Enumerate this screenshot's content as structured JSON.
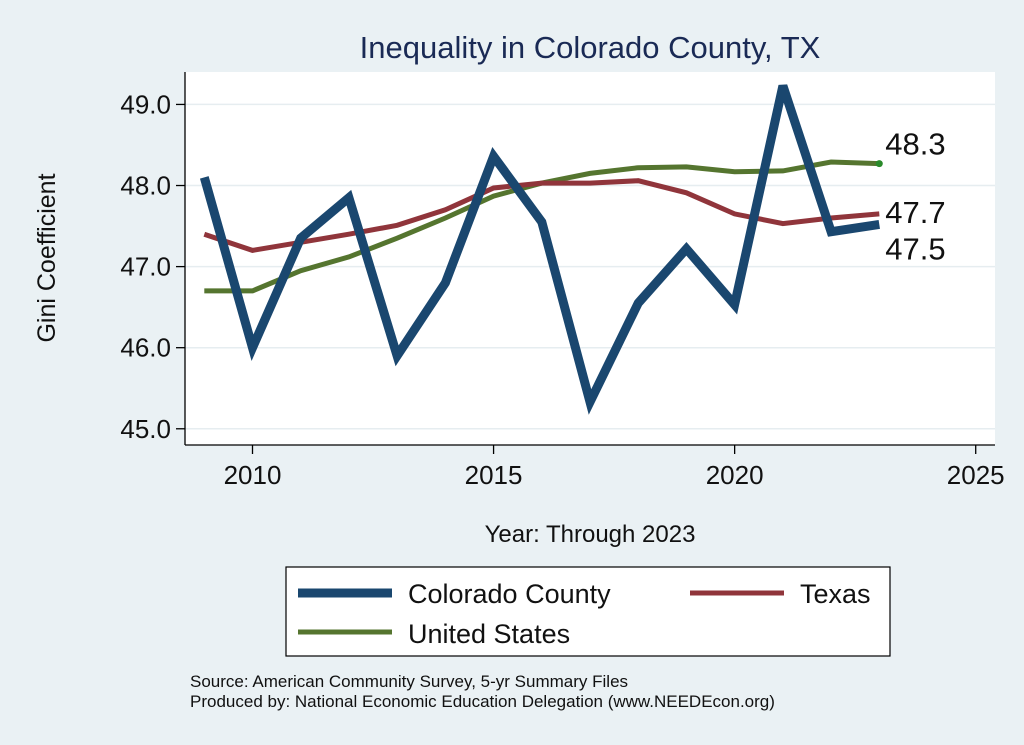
{
  "chart_data": {
    "type": "line",
    "title": "Inequality in Colorado County, TX",
    "xlabel": "Year: Through 2023",
    "ylabel": "Gini Coefficient",
    "xlim": [
      2008.6,
      2025.4
    ],
    "ylim": [
      44.8,
      49.4
    ],
    "x_ticks": [
      2010,
      2015,
      2020,
      2025
    ],
    "y_ticks": [
      45.0,
      46.0,
      47.0,
      48.0,
      49.0
    ],
    "x_tick_labels": [
      "2010",
      "2015",
      "2020",
      "2025"
    ],
    "y_tick_labels": [
      "45.0",
      "46.0",
      "47.0",
      "48.0",
      "49.0"
    ],
    "grid": true,
    "x": [
      2009,
      2010,
      2011,
      2012,
      2013,
      2014,
      2015,
      2016,
      2017,
      2018,
      2019,
      2020,
      2021,
      2022,
      2023
    ],
    "series": [
      {
        "name": "Colorado County",
        "color": "#1a476f",
        "values": [
          48.1,
          46.0,
          47.35,
          47.85,
          45.9,
          46.8,
          48.36,
          47.55,
          45.33,
          46.55,
          47.22,
          46.53,
          49.23,
          47.43,
          47.52
        ],
        "end_label": "47.5"
      },
      {
        "name": "Texas",
        "color": "#90353b",
        "values": [
          47.4,
          47.2,
          47.3,
          47.4,
          47.51,
          47.7,
          47.97,
          48.03,
          48.03,
          48.06,
          47.91,
          47.65,
          47.53,
          47.6,
          47.65
        ],
        "end_label": "47.7"
      },
      {
        "name": "United States",
        "color": "#55752f",
        "values": [
          46.7,
          46.7,
          46.95,
          47.12,
          47.35,
          47.6,
          47.87,
          48.03,
          48.15,
          48.22,
          48.23,
          48.17,
          48.18,
          48.29,
          48.27
        ],
        "end_label": "48.3"
      }
    ],
    "legend": {
      "position": "bottom",
      "items": [
        "Colorado County",
        "Texas",
        "United States"
      ]
    },
    "source_lines": [
      "Source: American Community Survey, 5-yr Summary Files",
      "Produced by: National Economic Education Delegation (www.NEEDEcon.org)"
    ]
  }
}
